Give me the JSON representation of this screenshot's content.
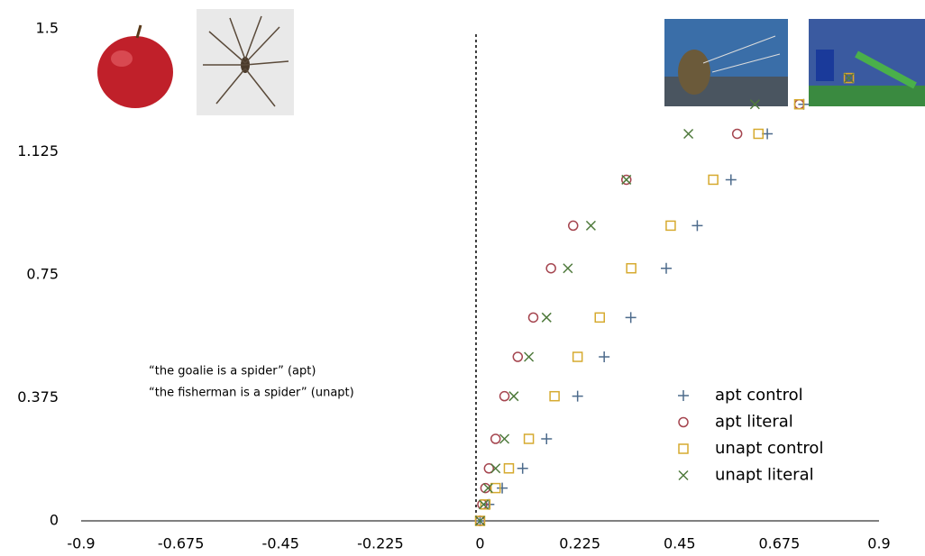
{
  "chart_data": {
    "type": "scatter",
    "annotations": [
      "“the goalie is a spider” (apt)",
      "“the fisherman is a spider” (unapt)"
    ],
    "xlim": [
      -0.9,
      0.9
    ],
    "ylim": [
      0,
      1.5
    ],
    "xticks": [
      -0.9,
      -0.675,
      -0.45,
      -0.225,
      0,
      0.225,
      0.45,
      0.675,
      0.9
    ],
    "yticks": [
      0,
      0.375,
      0.75,
      1.125,
      1.5
    ],
    "legend": "lower right",
    "series": [
      {
        "name": "apt control",
        "color": "#4d6b8c",
        "marker": "plus",
        "x": [
          0,
          0.02,
          0.05,
          0.096,
          0.15,
          0.22,
          0.28,
          0.34,
          0.42,
          0.49,
          0.566,
          0.648,
          0.73,
          0.832
        ],
        "values": [
          0,
          0.05,
          0.1,
          0.16,
          0.25,
          0.38,
          0.5,
          0.62,
          0.77,
          0.9,
          1.04,
          1.18,
          1.27,
          1.35
        ]
      },
      {
        "name": "apt literal",
        "color": "#a5454f",
        "marker": "circle",
        "x": [
          0,
          0.005,
          0.012,
          0.02,
          0.035,
          0.055,
          0.085,
          0.12,
          0.16,
          0.21,
          0.33,
          0.58,
          0.72,
          0.832
        ],
        "values": [
          0,
          0.05,
          0.1,
          0.16,
          0.25,
          0.38,
          0.5,
          0.62,
          0.77,
          0.9,
          1.04,
          1.18,
          1.27,
          1.35
        ]
      },
      {
        "name": "unapt control",
        "color": "#d6aa2f",
        "marker": "square",
        "x": [
          0,
          0.012,
          0.035,
          0.065,
          0.11,
          0.168,
          0.22,
          0.27,
          0.341,
          0.43,
          0.526,
          0.628,
          0.72,
          0.832
        ],
        "values": [
          0,
          0.05,
          0.1,
          0.16,
          0.25,
          0.38,
          0.5,
          0.62,
          0.77,
          0.9,
          1.04,
          1.18,
          1.27,
          1.35
        ]
      },
      {
        "name": "unapt literal",
        "color": "#4f7a3c",
        "marker": "cross",
        "x": [
          0,
          0.008,
          0.018,
          0.035,
          0.055,
          0.076,
          0.11,
          0.15,
          0.198,
          0.25,
          0.33,
          0.47,
          0.62,
          0.832
        ],
        "values": [
          0,
          0.05,
          0.1,
          0.16,
          0.25,
          0.38,
          0.5,
          0.62,
          0.77,
          0.9,
          1.04,
          1.18,
          1.27,
          1.35
        ]
      }
    ]
  }
}
